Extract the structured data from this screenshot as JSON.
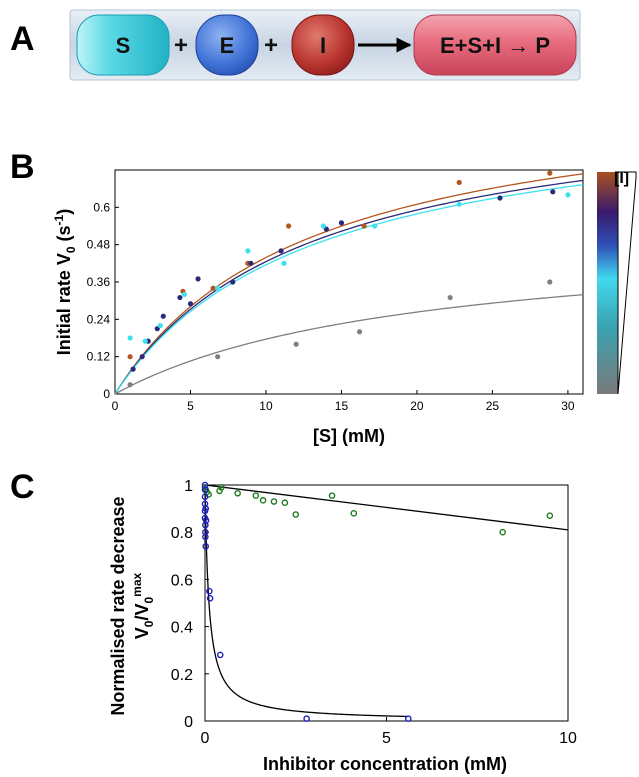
{
  "panel_a": {
    "letter": "A",
    "colors": {
      "band": "#cfdbe8",
      "s_pill": "#4fd3e0",
      "e_pill": "#3f73d6",
      "i_pill": "#b8332e",
      "product_pill": "#e6677a"
    },
    "reactants": [
      {
        "key": "s",
        "label": "S"
      },
      {
        "key": "e",
        "label": "E"
      },
      {
        "key": "i",
        "label": "I"
      }
    ],
    "plus": "+",
    "product": "E+S+I → P"
  },
  "chart_data": [
    {
      "type": "scatter",
      "panel": "B",
      "xlabel": "[S] (mM)",
      "ylabel": "Initial rate V",
      "ylabel_sub": "0",
      "ylabel_unit": " (s",
      "ylabel_sup": "-1",
      "ylabel_close": ")",
      "xlim": [
        0,
        31
      ],
      "ylim": [
        0,
        0.72
      ],
      "xticks": [
        0,
        5,
        10,
        15,
        20,
        25,
        30
      ],
      "yticks": [
        0,
        0.12,
        0.24,
        0.36,
        0.48,
        0.6
      ],
      "ytick_labels": [
        "0",
        "0.12",
        "0.24",
        "0.36",
        "0.48",
        "0.6"
      ],
      "colorbar": {
        "label": "[I]",
        "colors": [
          "#a8521f",
          "#3a1a6e",
          "#2e4fb8",
          "#42d8ee",
          "#3aa2b0",
          "#7a7a7a"
        ]
      },
      "series": [
        {
          "color": "#b4561e",
          "vmax": 1.0,
          "km": 12.8,
          "x": [
            1.0,
            4.5,
            6.5,
            8.8,
            11.5,
            16.5,
            22.8,
            28.8
          ],
          "y": [
            0.12,
            0.33,
            0.34,
            0.42,
            0.54,
            0.54,
            0.68,
            0.71
          ]
        },
        {
          "color": "#2a2a7a",
          "vmax": 0.97,
          "km": 12.8,
          "x": [
            1.2,
            1.8,
            2.2,
            2.8,
            3.2,
            4.3,
            5.0,
            5.5,
            7.8,
            9.0,
            11.0,
            14.0,
            15.0,
            25.5,
            29.0
          ],
          "y": [
            0.08,
            0.12,
            0.17,
            0.21,
            0.25,
            0.31,
            0.29,
            0.37,
            0.36,
            0.42,
            0.46,
            0.53,
            0.55,
            0.63,
            0.65
          ]
        },
        {
          "color": "#3fe0ee",
          "vmax": 0.955,
          "km": 13.0,
          "x": [
            1.0,
            2.0,
            3.0,
            4.6,
            6.8,
            8.8,
            11.2,
            13.8,
            17.2,
            22.8,
            30.0
          ],
          "y": [
            0.18,
            0.17,
            0.22,
            0.32,
            0.34,
            0.46,
            0.42,
            0.54,
            0.54,
            0.61,
            0.64
          ]
        },
        {
          "color": "#7f7f7f",
          "vmax": 0.52,
          "km": 19.5,
          "x": [
            1.0,
            6.8,
            12.0,
            16.2,
            22.2,
            28.8
          ],
          "y": [
            0.03,
            0.12,
            0.16,
            0.2,
            0.31,
            0.36
          ]
        }
      ]
    },
    {
      "type": "scatter",
      "panel": "C",
      "xlabel": "Inhibitor concentration (mM)",
      "ylabel_line1": "Normalised rate decrease",
      "ylabel_line2_main": "V",
      "ylabel_line2_sub": "0",
      "ylabel_line2_slash": "/V",
      "ylabel_line2_sub2": "0",
      "ylabel_line2_sup": "max",
      "xlim": [
        0,
        10
      ],
      "ylim": [
        0,
        1
      ],
      "xticks": [
        0,
        5,
        10
      ],
      "yticks": [
        0,
        0.2,
        0.4,
        0.6,
        0.8,
        1
      ],
      "ytick_labels": [
        "0",
        "0.2",
        "0.4",
        "0.6",
        "0.8",
        "1"
      ],
      "series": [
        {
          "color": "#1f7a1f",
          "fit": {
            "x": [
              0,
              10
            ],
            "y": [
              1.0,
              0.81
            ]
          },
          "x": [
            0.0,
            0.02,
            0.05,
            0.1,
            0.4,
            0.45,
            0.9,
            1.4,
            1.6,
            1.9,
            2.2,
            2.5,
            3.5,
            4.1,
            8.2,
            9.5
          ],
          "y": [
            0.99,
            0.98,
            0.97,
            0.96,
            0.975,
            0.99,
            0.965,
            0.955,
            0.935,
            0.93,
            0.925,
            0.875,
            0.955,
            0.88,
            0.8,
            0.87
          ]
        },
        {
          "color": "#1d1fc0",
          "fit": {
            "type": "hyperbolic",
            "ic50": 0.11
          },
          "x": [
            0.0,
            0.0,
            0.0,
            0.0,
            0.0,
            0.0,
            0.01,
            0.01,
            0.01,
            0.02,
            0.02,
            0.03,
            0.12,
            0.14,
            0.42,
            2.8,
            5.6
          ],
          "y": [
            1.0,
            0.98,
            0.95,
            0.92,
            0.89,
            0.86,
            0.83,
            0.8,
            0.78,
            0.74,
            0.9,
            0.85,
            0.55,
            0.52,
            0.28,
            0.01,
            0.01
          ]
        }
      ]
    }
  ]
}
